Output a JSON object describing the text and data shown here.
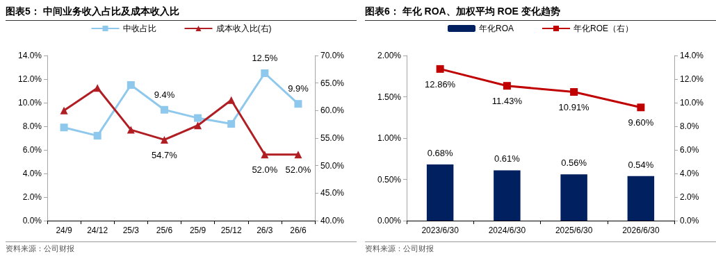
{
  "chart_data": [
    {
      "type": "line",
      "title": "图表5：  中间业务收入占比及成本收入比",
      "categories": [
        "24/9",
        "24/12",
        "25/3",
        "25/6",
        "25/9",
        "25/12",
        "26/3",
        "26/6"
      ],
      "series": [
        {
          "name": "中收占比",
          "color": "#8ec8ec",
          "marker": "square",
          "values": [
            7.9,
            7.2,
            11.5,
            9.4,
            8.7,
            8.2,
            12.5,
            9.9
          ],
          "value_labels": [
            null,
            null,
            null,
            "9.4%",
            null,
            null,
            "12.5%",
            "9.9%"
          ]
        },
        {
          "name": "成本收入比(右)",
          "color": "#b01e23",
          "marker": "triangle",
          "axis": "y2",
          "values": [
            60.0,
            64.1,
            56.5,
            54.7,
            57.3,
            61.9,
            52.0,
            52.0
          ],
          "value_labels": [
            null,
            null,
            null,
            "54.7%",
            null,
            null,
            "52.0%",
            "52.0%"
          ]
        }
      ],
      "ylim": [
        0,
        14
      ],
      "yticks": [
        {
          "value": 0,
          "label": "0.0%"
        },
        {
          "value": 2,
          "label": "2.0%"
        },
        {
          "value": 4,
          "label": "4.0%"
        },
        {
          "value": 6,
          "label": "6.0%"
        },
        {
          "value": 8,
          "label": "8.0%"
        },
        {
          "value": 10,
          "label": "10.0%"
        },
        {
          "value": 12,
          "label": "12.0%"
        },
        {
          "value": 14,
          "label": "14.0%"
        }
      ],
      "y2lim": [
        40,
        70
      ],
      "y2ticks": [
        {
          "value": 40,
          "label": "40.0%"
        },
        {
          "value": 45,
          "label": "45.0%"
        },
        {
          "value": 50,
          "label": "50.0%"
        },
        {
          "value": 55,
          "label": "55.0%"
        },
        {
          "value": 60,
          "label": "60.0%"
        },
        {
          "value": 65,
          "label": "65.0%"
        },
        {
          "value": 70,
          "label": "70.0%"
        }
      ],
      "legend": "top",
      "grid": false,
      "annotations": [
        "资料来源：公司财报"
      ]
    },
    {
      "type": "bar",
      "title": "图表6：  年化 ROA、加权平均 ROE 变化趋势",
      "categories": [
        "2023/6/30",
        "2024/6/30",
        "2025/6/30",
        "2026/6/30"
      ],
      "series": [
        {
          "name": "年化ROA",
          "color": "#002060",
          "values": [
            0.68,
            0.61,
            0.56,
            0.54
          ],
          "value_labels": [
            "0.68%",
            "0.61%",
            "0.56%",
            "0.54%"
          ]
        },
        {
          "name": "年化ROE（右）",
          "type": "line",
          "color": "#c00000",
          "marker": "square",
          "axis": "y2",
          "values": [
            12.86,
            11.43,
            10.91,
            9.6
          ],
          "value_labels": [
            "12.86%",
            "11.43%",
            "10.91%",
            "9.60%"
          ]
        }
      ],
      "ylim": [
        0,
        2
      ],
      "yticks": [
        {
          "value": 0,
          "label": "0.00%"
        },
        {
          "value": 0.5,
          "label": "0.50%"
        },
        {
          "value": 1,
          "label": "1.00%"
        },
        {
          "value": 1.5,
          "label": "1.50%"
        },
        {
          "value": 2,
          "label": "2.00%"
        }
      ],
      "y2lim": [
        0,
        14
      ],
      "y2ticks": [
        {
          "value": 0,
          "label": "0.0%"
        },
        {
          "value": 2,
          "label": "2.0%"
        },
        {
          "value": 4,
          "label": "4.0%"
        },
        {
          "value": 6,
          "label": "6.0%"
        },
        {
          "value": 8,
          "label": "8.0%"
        },
        {
          "value": 10,
          "label": "10.0%"
        },
        {
          "value": 12,
          "label": "12.0%"
        },
        {
          "value": 14,
          "label": "14.0%"
        }
      ],
      "legend": "top",
      "grid": false,
      "annotations": [
        "资料来源：公司财报"
      ]
    }
  ]
}
